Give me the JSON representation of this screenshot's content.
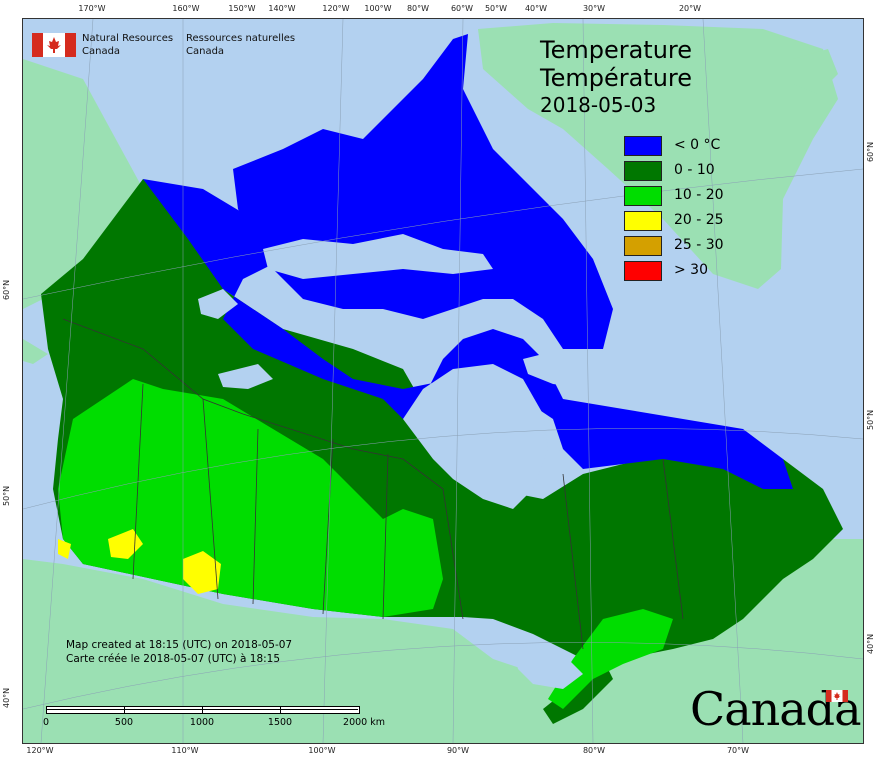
{
  "map": {
    "title_en": "Temperature",
    "title_fr": "Température",
    "date": "2018-05-03",
    "legend": [
      {
        "label": "< 0 °C",
        "color": "#0000ff"
      },
      {
        "label": "0 - 10",
        "color": "#007700"
      },
      {
        "label": "10 - 20",
        "color": "#00dd00"
      },
      {
        "label": "20 - 25",
        "color": "#ffff00"
      },
      {
        "label": "25 - 30",
        "color": "#d4a000"
      },
      {
        "label": "> 30",
        "color": "#ff0000"
      }
    ],
    "colors": {
      "water": "#b3d1f0",
      "land_other": "#9be0b3",
      "boundary": "#333333"
    }
  },
  "agency": {
    "en_line1": "Natural Resources",
    "en_line2": "Canada",
    "fr_line1": "Ressources naturelles",
    "fr_line2": "Canada"
  },
  "credits": {
    "line_en": "Map created at 18:15 (UTC) on 2018-05-07",
    "line_fr": "Carte créée le 2018-05-07 (UTC) à 18:15"
  },
  "scale": {
    "labels": [
      "0",
      "500",
      "1000",
      "1500",
      "2000 km"
    ]
  },
  "wordmark": "Canada",
  "graticule": {
    "top": [
      "170°W",
      "160°W",
      "150°W",
      "140°W",
      "120°W",
      "100°W",
      "80°W",
      "60°W",
      "50°W",
      "40°W",
      "30°W",
      "20°W"
    ],
    "bottom": [
      "120°W",
      "110°W",
      "100°W",
      "90°W",
      "80°W",
      "70°W"
    ],
    "left": [
      "60°N",
      "50°N",
      "40°N"
    ],
    "right": [
      "60°N",
      "50°N",
      "40°N"
    ]
  }
}
